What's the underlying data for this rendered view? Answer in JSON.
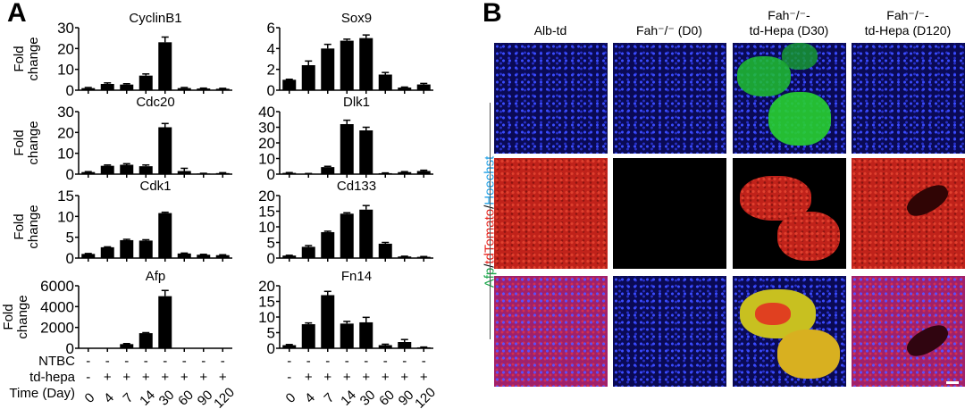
{
  "panel_a_label": "A",
  "panel_b_label": "B",
  "chart_data": [
    {
      "type": "bar",
      "title": "CyclinB1",
      "ylabel": "Fold change",
      "ylim": [
        0,
        30
      ],
      "yticks": [
        0,
        10,
        20,
        30
      ],
      "categories": [
        "0",
        "4",
        "7",
        "14",
        "30",
        "60",
        "90",
        "120"
      ],
      "values": [
        1,
        3,
        2.7,
        7,
        23,
        1,
        0.8,
        0.7
      ],
      "errors": [
        0.3,
        0.5,
        0.4,
        0.8,
        2.5,
        0.3,
        0.2,
        0.2
      ]
    },
    {
      "type": "bar",
      "title": "Sox9",
      "ylabel": "",
      "ylim": [
        0,
        6
      ],
      "yticks": [
        0,
        2,
        4,
        6
      ],
      "categories": [
        "0",
        "4",
        "7",
        "14",
        "30",
        "60",
        "90",
        "120"
      ],
      "values": [
        1,
        2.4,
        4,
        4.75,
        5,
        1.5,
        0.25,
        0.55
      ],
      "errors": [
        0.05,
        0.4,
        0.4,
        0.15,
        0.3,
        0.2,
        0.05,
        0.1
      ]
    },
    {
      "type": "bar",
      "title": "Cdc20",
      "ylabel": "Fold change",
      "ylim": [
        0,
        30
      ],
      "yticks": [
        0,
        10,
        20,
        30
      ],
      "categories": [
        "0",
        "4",
        "7",
        "14",
        "30",
        "60",
        "90",
        "120"
      ],
      "values": [
        1,
        4,
        4.5,
        3.8,
        22.5,
        1.5,
        0.3,
        0.5
      ],
      "errors": [
        0.2,
        0.4,
        0.5,
        0.6,
        1.8,
        1.3,
        0.1,
        0.2
      ]
    },
    {
      "type": "bar",
      "title": "Dlk1",
      "ylabel": "",
      "ylim": [
        0,
        40
      ],
      "yticks": [
        0,
        10,
        20,
        30,
        40
      ],
      "categories": [
        "0",
        "4",
        "7",
        "14",
        "30",
        "60",
        "90",
        "120"
      ],
      "values": [
        0.8,
        0.3,
        4.5,
        32,
        28,
        0.6,
        1.3,
        2
      ],
      "errors": [
        0.2,
        0.1,
        0.5,
        2.5,
        2,
        0.2,
        0.3,
        0.5
      ]
    },
    {
      "type": "bar",
      "title": "Cdk1",
      "ylabel": "Fold change",
      "ylim": [
        0,
        15
      ],
      "yticks": [
        0,
        5,
        10,
        15
      ],
      "categories": [
        "0",
        "4",
        "7",
        "14",
        "30",
        "60",
        "90",
        "120"
      ],
      "values": [
        1,
        2.6,
        4.3,
        4.2,
        10.8,
        1.1,
        0.8,
        0.7
      ],
      "errors": [
        0.1,
        0.1,
        0.2,
        0.2,
        0.2,
        0.1,
        0.1,
        0.1
      ]
    },
    {
      "type": "bar",
      "title": "Cd133",
      "ylabel": "",
      "ylim": [
        0,
        20
      ],
      "yticks": [
        0,
        5,
        10,
        15,
        20
      ],
      "categories": [
        "0",
        "4",
        "7",
        "14",
        "30",
        "60",
        "90",
        "120"
      ],
      "values": [
        0.8,
        3.6,
        8.3,
        14.2,
        15.5,
        4.6,
        0.5,
        0.4
      ],
      "errors": [
        0.1,
        0.4,
        0.3,
        0.3,
        1.3,
        0.4,
        0.1,
        0.1
      ]
    },
    {
      "type": "bar",
      "title": "Afp",
      "ylabel": "Fold change",
      "ylim": [
        0,
        6000
      ],
      "yticks": [
        0,
        2000,
        4000,
        6000
      ],
      "categories": [
        "0",
        "4",
        "7",
        "14",
        "30",
        "60",
        "90",
        "120"
      ],
      "values": [
        5,
        20,
        400,
        1450,
        5000,
        0,
        0,
        0
      ],
      "errors": [
        0,
        0,
        50,
        50,
        550,
        0,
        0,
        0
      ]
    },
    {
      "type": "bar",
      "title": "Fn14",
      "ylabel": "",
      "ylim": [
        0,
        20
      ],
      "yticks": [
        0,
        5,
        10,
        15,
        20
      ],
      "categories": [
        "0",
        "4",
        "7",
        "14",
        "30",
        "60",
        "90",
        "120"
      ],
      "values": [
        1,
        7.7,
        17,
        7.9,
        8.3,
        1,
        2,
        0.3
      ],
      "errors": [
        0.2,
        0.4,
        1.2,
        0.7,
        1.6,
        0.3,
        0.8,
        0.1
      ]
    }
  ],
  "conditions": {
    "ntbc_label": "NTBC",
    "ntbc": [
      "-",
      "-",
      "-",
      "-",
      "-",
      "-",
      "-",
      "-"
    ],
    "tdhepa_label": "td-hepa",
    "tdhepa": [
      "-",
      "+",
      "+",
      "+",
      "+",
      "+",
      "+",
      "+"
    ],
    "time_label": "Time (Day)"
  },
  "panel_b": {
    "columns": [
      {
        "line1": "Alb-td",
        "line2": ""
      },
      {
        "line1": "Fah⁻/⁻ (D0)",
        "line2": ""
      },
      {
        "line1": "Fah⁻/⁻-",
        "line2": "td-Hepa (D30)"
      },
      {
        "line1": "Fah⁻/⁻-",
        "line2": "td-Hepa (D120)"
      }
    ],
    "stain_afp": "Afp",
    "sep1": "/",
    "stain_td": "tdTomato",
    "sep2": "/",
    "stain_hoechst": "Hoechst",
    "colors": {
      "afp": "#1aa64a",
      "td": "#e8231c",
      "hoechst": "#1ea0e6"
    }
  }
}
